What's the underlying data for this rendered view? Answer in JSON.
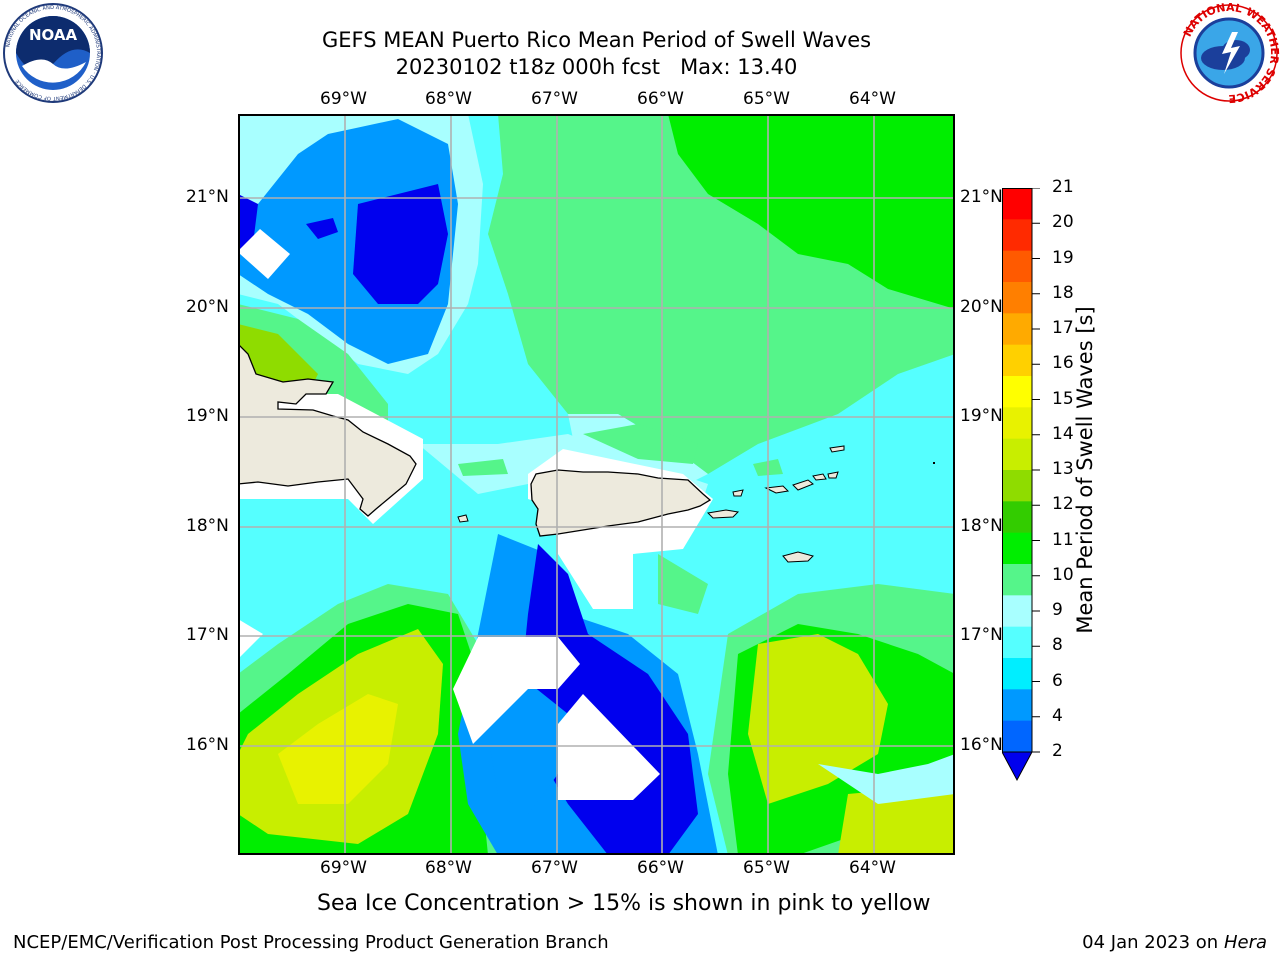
{
  "header": {
    "title_line1": "GEFS MEAN Puerto Rico Mean Period of Swell Waves",
    "title_line2": "20230102 t18z 000h fcst   Max: 13.40"
  },
  "logos": {
    "noaa_text": "NOAA",
    "noaa_ring_text": "NATIONAL OCEANIC AND ATMOSPHERIC ADMINISTRATION · U.S. DEPARTMENT OF COMMERCE",
    "nws_ring_text": "NATIONAL WEATHER SERVICE"
  },
  "map": {
    "lon_labels": [
      "69°W",
      "68°W",
      "67°W",
      "66°W",
      "65°W",
      "64°W"
    ],
    "lat_labels": [
      "21°N",
      "20°N",
      "19°N",
      "18°N",
      "17°N",
      "16°N"
    ],
    "lon_range": [
      -70.0,
      -63.3
    ],
    "lat_range": [
      15.0,
      21.75
    ],
    "grid": true,
    "islands": [
      "Hispaniola",
      "Puerto Rico",
      "Virgin Islands"
    ]
  },
  "colorbar": {
    "label": "Mean Period of Swell Waves [s]",
    "ticks": [
      "21",
      "20",
      "19",
      "18",
      "17",
      "16",
      "15",
      "14",
      "13",
      "12",
      "11",
      "10",
      "9",
      "8",
      "6",
      "4",
      "2"
    ],
    "colors": [
      "#ff0000",
      "#ff2a00",
      "#ff5a00",
      "#ff7f00",
      "#ffaa00",
      "#ffd000",
      "#ffff00",
      "#e8f200",
      "#c8ee00",
      "#8fdc00",
      "#33cc00",
      "#00ee00",
      "#55f58a",
      "#a8ffff",
      "#55ffff",
      "#00eeff",
      "#0099ff",
      "#0066ff"
    ],
    "extend_color": "#0000ee"
  },
  "footer": {
    "sea_ice_note": "Sea Ice Concentration > 15% is shown in pink to yellow",
    "branch": "NCEP/EMC/Verification Post Processing Product Generation Branch",
    "date": "04 Jan 2023 on ",
    "machine": "Hera"
  }
}
